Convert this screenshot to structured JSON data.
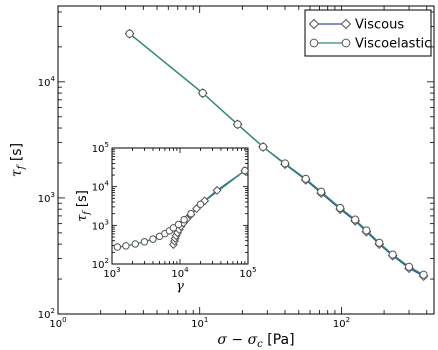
{
  "colors": {
    "viscous": "#3a4fa0",
    "viscoelastic": "#2e8b6e",
    "axis": "#000000",
    "marker_fill": "#ffffff"
  },
  "chart_data": [
    {
      "id": "main",
      "type": "line",
      "scale": "log-log",
      "xlabel_math": "σ − σ",
      "xlabel_sub": "c",
      "xlabel_unit": " [Pa]",
      "ylabel_math": "τ",
      "ylabel_sub": "f",
      "ylabel_unit": " [s]",
      "xlim": [
        1,
        450
      ],
      "ylim": [
        100,
        45000
      ],
      "xticks": [
        {
          "value": 1,
          "base": "10",
          "exp": "0"
        },
        {
          "value": 10,
          "base": "10",
          "exp": "1"
        },
        {
          "value": 100,
          "base": "10",
          "exp": "2"
        }
      ],
      "yticks": [
        {
          "value": 100,
          "base": "10",
          "exp": "2"
        },
        {
          "value": 1000,
          "base": "10",
          "exp": "3"
        },
        {
          "value": 10000,
          "base": "10",
          "exp": "4"
        }
      ],
      "legend_position": "top-right",
      "series": [
        {
          "name": "Viscous",
          "marker": "diamond",
          "color_key": "viscous",
          "x": [
            3.2,
            10.5,
            18.5,
            28,
            40,
            56,
            72,
            98,
            125,
            150,
            185,
            230,
            300,
            380
          ],
          "y": [
            26000,
            8000,
            4300,
            2750,
            1950,
            1430,
            1100,
            800,
            635,
            512,
            400,
            318,
            248,
            212
          ]
        },
        {
          "name": "Viscoelastic",
          "marker": "circle",
          "color_key": "viscoelastic",
          "x": [
            3.2,
            10.5,
            18.5,
            28,
            40,
            56,
            72,
            98,
            125,
            150,
            185,
            230,
            300,
            380
          ],
          "y": [
            26000,
            8000,
            4300,
            2750,
            1980,
            1460,
            1130,
            820,
            650,
            525,
            410,
            325,
            255,
            218
          ]
        }
      ]
    },
    {
      "id": "inset",
      "type": "line",
      "scale": "log-log",
      "xlabel_math": "γ",
      "ylabel_math": "τ",
      "ylabel_sub": "f",
      "ylabel_unit": " [s]",
      "xlim": [
        1000,
        100000
      ],
      "ylim": [
        100,
        100000
      ],
      "xticks": [
        {
          "value": 1000,
          "base": "10",
          "exp": "3"
        },
        {
          "value": 10000,
          "base": "10",
          "exp": "4"
        },
        {
          "value": 100000,
          "base": "10",
          "exp": "5"
        }
      ],
      "yticks": [
        {
          "value": 100,
          "base": "10",
          "exp": "2"
        },
        {
          "value": 1000,
          "base": "10",
          "exp": "3"
        },
        {
          "value": 10000,
          "base": "10",
          "exp": "4"
        },
        {
          "value": 100000,
          "base": "10",
          "exp": "5"
        }
      ],
      "series": [
        {
          "name": "Viscous",
          "marker": "diamond",
          "color_key": "viscous",
          "x": [
            8000,
            8300,
            8500,
            8800,
            9200,
            9700,
            10300,
            11200,
            12500,
            14500,
            17500,
            23000,
            35000,
            90000
          ],
          "y": [
            320,
            390,
            460,
            540,
            640,
            780,
            940,
            1150,
            1450,
            1900,
            2700,
            4300,
            8000,
            26000
          ]
        },
        {
          "name": "Viscoelastic",
          "marker": "circle",
          "color_key": "viscoelastic",
          "x": [
            1200,
            1600,
            2200,
            3000,
            4000,
            5000,
            6000,
            7000,
            8000,
            9500,
            11500,
            14500,
            20000,
            90000
          ],
          "y": [
            275,
            295,
            330,
            375,
            440,
            520,
            610,
            720,
            860,
            1050,
            1400,
            2000,
            3500,
            26000
          ]
        }
      ]
    }
  ]
}
